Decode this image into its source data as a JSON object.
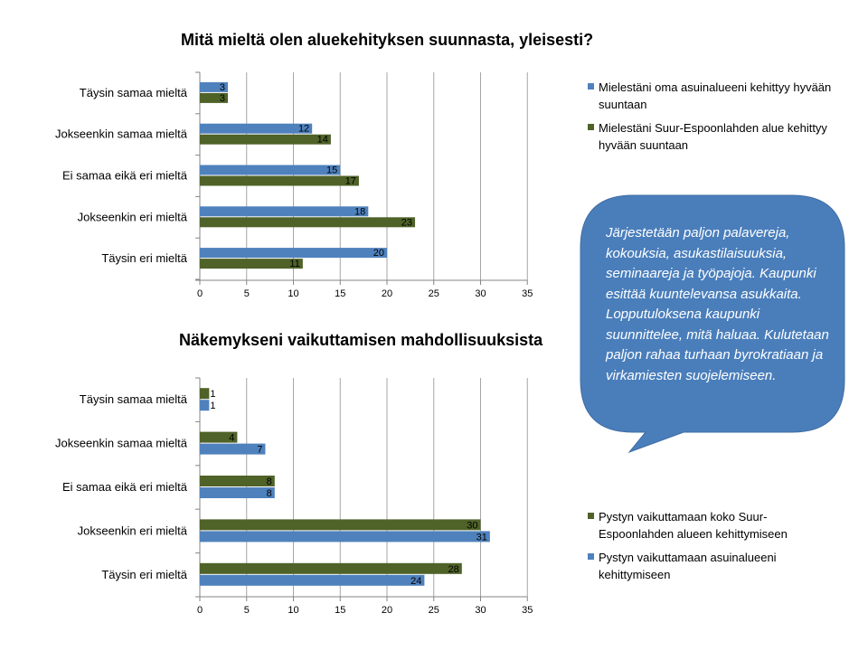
{
  "colors": {
    "blue": "#4F81BD",
    "green": "#4F6228",
    "bubble": "#4A7EBB",
    "grid": "#A6A6A6"
  },
  "chart_data": [
    {
      "type": "bar",
      "orientation": "horizontal",
      "title": "Mitä mieltä olen aluekehityksen suunnasta, yleisesti?",
      "categories": [
        "Täysin samaa mieltä",
        "Jokseenkin samaa mieltä",
        "Ei samaa eikä eri mieltä",
        "Jokseenkin eri mieltä",
        "Täysin eri mieltä"
      ],
      "series": [
        {
          "name": "Mielestäni oma asuinalueeni kehittyy hyvään suuntaan",
          "color": "#4F81BD",
          "values": [
            3,
            12,
            15,
            18,
            20
          ]
        },
        {
          "name": "Mielestäni Suur-Espoonlahden alue kehittyy hyvään suuntaan",
          "color": "#4F6228",
          "values": [
            3,
            14,
            17,
            23,
            11
          ]
        }
      ],
      "xlim": [
        0,
        35
      ],
      "xticks": [
        "0",
        "5",
        "10",
        "15",
        "20",
        "25",
        "30",
        "35"
      ],
      "grid": true,
      "legend": "right"
    },
    {
      "type": "bar",
      "orientation": "horizontal",
      "title": "Näkemykseni vaikuttamisen mahdollisuuksista",
      "categories": [
        "Täysin samaa mieltä",
        "Jokseenkin samaa mieltä",
        "Ei samaa eikä eri mieltä",
        "Jokseenkin eri mieltä",
        "Täysin eri mieltä"
      ],
      "series": [
        {
          "name": "Pystyn vaikuttamaan koko Suur-Espoonlahden alueen kehittymiseen",
          "color": "#4F6228",
          "values": [
            1,
            4,
            8,
            30,
            28
          ]
        },
        {
          "name": "Pystyn vaikuttamaan asuinalueeni kehittymiseen",
          "color": "#4F81BD",
          "values": [
            1,
            7,
            8,
            31,
            24
          ]
        }
      ],
      "xlim": [
        0,
        35
      ],
      "xticks": [
        "0",
        "5",
        "10",
        "15",
        "20",
        "25",
        "30",
        "35"
      ],
      "grid": true,
      "legend": "right"
    }
  ],
  "callout": {
    "text": "Järjestetään paljon palavereja, kokouksia, asukastilaisuuksia, seminaareja ja työpajoja. Kaupunki esittää kuuntelevansa asukkaita. Lopputuloksena kaupunki suunnittelee, mitä haluaa. Kulutetaan paljon rahaa turhaan byrokratiaan ja virkamiesten suojelemiseen."
  }
}
